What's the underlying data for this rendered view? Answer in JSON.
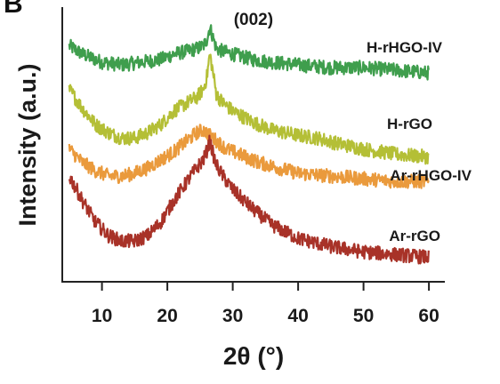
{
  "panel_label": "B",
  "chart_data": {
    "type": "line",
    "title": "",
    "xlabel": "2θ (°)",
    "ylabel": "Intensity (a.u.)",
    "xlim": [
      4,
      61
    ],
    "xticks": [
      10,
      20,
      30,
      40,
      50,
      60
    ],
    "yticks": [],
    "ylim": [
      0,
      100
    ],
    "grid": false,
    "legend": "none",
    "annotation": {
      "text": "(002)",
      "x": 26.5
    },
    "series": [
      {
        "name": "H-rHGO-IV",
        "color": "#3f9e4d",
        "x": [
          5,
          7,
          10,
          13,
          16,
          19,
          21,
          23,
          24.5,
          25.5,
          26,
          26.5,
          27,
          27.5,
          28.5,
          30,
          33,
          36,
          40,
          45,
          50,
          55,
          60
        ],
        "y": [
          87,
          84,
          81,
          80,
          81,
          82,
          84,
          85,
          86,
          87,
          89,
          94,
          90,
          86,
          85,
          84,
          82,
          81,
          80,
          79,
          79,
          78,
          77
        ]
      },
      {
        "name": "H-rGO",
        "color": "#b4bf36",
        "x": [
          5,
          7,
          9,
          11,
          13,
          15,
          17,
          19,
          21,
          23,
          24.5,
          25.5,
          26,
          26.5,
          27,
          27.5,
          28.5,
          30,
          33,
          36,
          40,
          43,
          46,
          50,
          55,
          60
        ],
        "y": [
          71,
          64,
          58,
          55,
          53,
          53,
          55,
          58,
          63,
          66,
          68,
          71,
          75,
          84,
          77,
          69,
          66,
          63,
          59,
          56,
          54,
          53,
          51,
          49,
          47,
          46
        ]
      },
      {
        "name": "Ar-rHGO-IV",
        "color": "#ea9a3c",
        "x": [
          5,
          7,
          9,
          11,
          13,
          15,
          17,
          19,
          21,
          23,
          24.5,
          25.5,
          26.5,
          27.5,
          29,
          31,
          34,
          37,
          40,
          45,
          50,
          55,
          60
        ],
        "y": [
          49,
          44,
          41,
          39,
          39,
          40,
          42,
          45,
          48,
          52,
          55,
          56,
          54,
          52,
          49,
          47,
          44,
          42,
          40,
          39,
          38,
          37,
          37
        ]
      },
      {
        "name": "Ar-rGO",
        "color": "#a83228",
        "x": [
          5,
          7,
          9,
          11,
          13,
          15,
          17,
          19,
          21,
          23,
          24.5,
          25.5,
          26,
          26.5,
          27,
          27.5,
          28.5,
          30,
          33,
          36,
          40,
          45,
          50,
          55,
          60
        ],
        "y": [
          39,
          30,
          22,
          17,
          15,
          15,
          17,
          22,
          30,
          37,
          42,
          45,
          48,
          52,
          47,
          43,
          39,
          34,
          27,
          21,
          16,
          13,
          11,
          10,
          9
        ]
      }
    ]
  }
}
